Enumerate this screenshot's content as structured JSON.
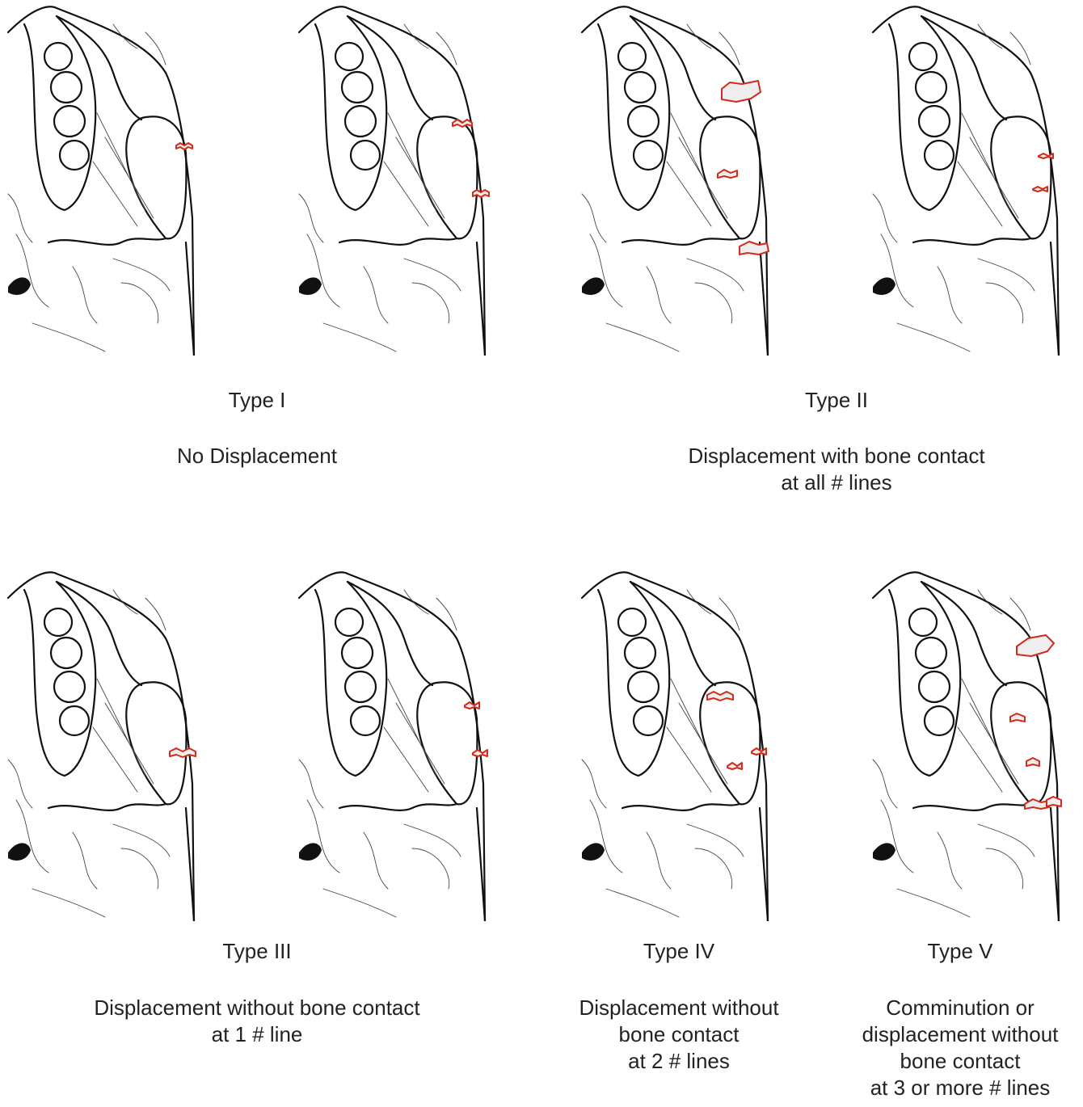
{
  "panels": [
    {
      "title": "Type I",
      "description": [
        "No Displacement"
      ]
    },
    {
      "title": "Type II",
      "description": [
        "Displacement with bone contact",
        "at all # lines"
      ]
    },
    {
      "title": "Type III",
      "description": [
        "Displacement without bone contact",
        "at 1 # line"
      ]
    },
    {
      "title": "Type IV",
      "description": [
        "Displacement without",
        "bone contact",
        "at 2 # lines"
      ]
    },
    {
      "title": "Type V",
      "description": [
        "Comminution or",
        "displacement without",
        "bone contact",
        "at 3 or more # lines"
      ]
    }
  ]
}
